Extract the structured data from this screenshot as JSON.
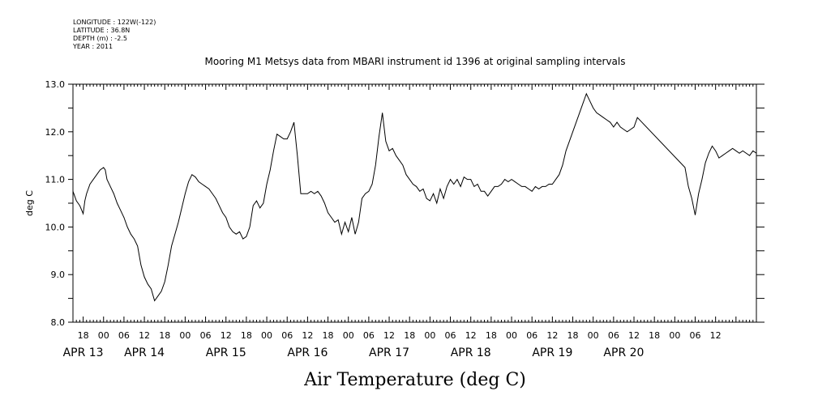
{
  "header": {
    "meta_lines": [
      "LONGITUDE : 122W(-122)",
      "LATITUDE : 36.8N",
      "DEPTH (m) : -2.5",
      "YEAR : 2011"
    ],
    "title": "Mooring M1 Metsys data from MBARI instrument id 1396 at original sampling intervals"
  },
  "chart_data": {
    "type": "line",
    "title": "Mooring M1 Metsys data from MBARI instrument id 1396 at original sampling intervals",
    "xlabel": "Air Temperature (deg C)",
    "ylabel": "deg C",
    "ylim": [
      8.0,
      13.0
    ],
    "y_ticks": [
      "8.0",
      "9.0",
      "10.0",
      "11.0",
      "12.0",
      "13.0"
    ],
    "x_unit": "hours since APR 13 00:00",
    "xlim": [
      15,
      216
    ],
    "hour_ticks": [
      {
        "t": 18,
        "label": "18"
      },
      {
        "t": 24,
        "label": "00"
      },
      {
        "t": 30,
        "label": "06"
      },
      {
        "t": 36,
        "label": "12"
      },
      {
        "t": 42,
        "label": "18"
      },
      {
        "t": 48,
        "label": "00"
      },
      {
        "t": 54,
        "label": "06"
      },
      {
        "t": 60,
        "label": "12"
      },
      {
        "t": 66,
        "label": "18"
      },
      {
        "t": 72,
        "label": "00"
      },
      {
        "t": 78,
        "label": "06"
      },
      {
        "t": 84,
        "label": "12"
      },
      {
        "t": 90,
        "label": "18"
      },
      {
        "t": 96,
        "label": "00"
      },
      {
        "t": 102,
        "label": "06"
      },
      {
        "t": 108,
        "label": "12"
      },
      {
        "t": 114,
        "label": "18"
      },
      {
        "t": 120,
        "label": "00"
      },
      {
        "t": 126,
        "label": "06"
      },
      {
        "t": 132,
        "label": "12"
      },
      {
        "t": 138,
        "label": "18"
      },
      {
        "t": 144,
        "label": "00"
      },
      {
        "t": 150,
        "label": "06"
      },
      {
        "t": 156,
        "label": "12"
      },
      {
        "t": 162,
        "label": "18"
      },
      {
        "t": 168,
        "label": "00"
      },
      {
        "t": 174,
        "label": "06"
      },
      {
        "t": 180,
        "label": "12"
      },
      {
        "t": 186,
        "label": "18"
      },
      {
        "t": 192,
        "label": "00"
      },
      {
        "t": 198,
        "label": "06"
      },
      {
        "t": 204,
        "label": "12"
      }
    ],
    "date_labels": [
      {
        "t": 18,
        "label": "APR 13"
      },
      {
        "t": 36,
        "label": "APR 14"
      },
      {
        "t": 60,
        "label": "APR 15"
      },
      {
        "t": 84,
        "label": "APR 16"
      },
      {
        "t": 108,
        "label": "APR 17"
      },
      {
        "t": 132,
        "label": "APR 18"
      },
      {
        "t": 156,
        "label": "APR 19"
      },
      {
        "t": 177,
        "label": "APR 20"
      }
    ],
    "series": [
      {
        "color": "#000000",
        "points": [
          [
            15.0,
            10.75
          ],
          [
            16.0,
            10.55
          ],
          [
            17.0,
            10.45
          ],
          [
            18.0,
            10.28
          ],
          [
            18.5,
            10.55
          ],
          [
            19.0,
            10.7
          ],
          [
            20.0,
            10.9
          ],
          [
            21.0,
            11.0
          ],
          [
            22.0,
            11.1
          ],
          [
            23.0,
            11.2
          ],
          [
            24.0,
            11.25
          ],
          [
            24.5,
            11.2
          ],
          [
            25.0,
            11.0
          ],
          [
            26.0,
            10.85
          ],
          [
            27.0,
            10.7
          ],
          [
            28.0,
            10.5
          ],
          [
            29.0,
            10.35
          ],
          [
            30.0,
            10.2
          ],
          [
            31.0,
            10.0
          ],
          [
            32.0,
            9.85
          ],
          [
            33.0,
            9.75
          ],
          [
            34.0,
            9.6
          ],
          [
            35.0,
            9.2
          ],
          [
            36.0,
            8.95
          ],
          [
            37.0,
            8.8
          ],
          [
            38.0,
            8.7
          ],
          [
            39.0,
            8.45
          ],
          [
            40.0,
            8.55
          ],
          [
            41.0,
            8.65
          ],
          [
            42.0,
            8.85
          ],
          [
            43.0,
            9.2
          ],
          [
            44.0,
            9.6
          ],
          [
            45.0,
            9.85
          ],
          [
            46.0,
            10.1
          ],
          [
            47.0,
            10.4
          ],
          [
            48.0,
            10.7
          ],
          [
            49.0,
            10.95
          ],
          [
            50.0,
            11.1
          ],
          [
            51.0,
            11.05
          ],
          [
            52.0,
            10.95
          ],
          [
            53.0,
            10.9
          ],
          [
            54.0,
            10.85
          ],
          [
            55.0,
            10.8
          ],
          [
            56.0,
            10.7
          ],
          [
            57.0,
            10.6
          ],
          [
            58.0,
            10.45
          ],
          [
            59.0,
            10.3
          ],
          [
            60.0,
            10.2
          ],
          [
            61.0,
            10.0
          ],
          [
            62.0,
            9.9
          ],
          [
            63.0,
            9.85
          ],
          [
            64.0,
            9.9
          ],
          [
            65.0,
            9.75
          ],
          [
            66.0,
            9.8
          ],
          [
            67.0,
            10.0
          ],
          [
            68.0,
            10.45
          ],
          [
            69.0,
            10.55
          ],
          [
            70.0,
            10.4
          ],
          [
            71.0,
            10.5
          ],
          [
            72.0,
            10.9
          ],
          [
            73.0,
            11.2
          ],
          [
            74.0,
            11.6
          ],
          [
            75.0,
            11.95
          ],
          [
            76.0,
            11.9
          ],
          [
            77.0,
            11.85
          ],
          [
            78.0,
            11.85
          ],
          [
            79.0,
            12.0
          ],
          [
            80.0,
            12.2
          ],
          [
            81.0,
            11.5
          ],
          [
            82.0,
            10.7
          ],
          [
            83.0,
            10.7
          ],
          [
            84.0,
            10.7
          ],
          [
            85.0,
            10.75
          ],
          [
            86.0,
            10.7
          ],
          [
            87.0,
            10.75
          ],
          [
            88.0,
            10.65
          ],
          [
            89.0,
            10.5
          ],
          [
            90.0,
            10.3
          ],
          [
            91.0,
            10.2
          ],
          [
            92.0,
            10.1
          ],
          [
            93.0,
            10.15
          ],
          [
            94.0,
            9.85
          ],
          [
            95.0,
            10.1
          ],
          [
            96.0,
            9.9
          ],
          [
            97.0,
            10.2
          ],
          [
            98.0,
            9.85
          ],
          [
            99.0,
            10.1
          ],
          [
            100.0,
            10.6
          ],
          [
            101.0,
            10.7
          ],
          [
            102.0,
            10.75
          ],
          [
            103.0,
            10.9
          ],
          [
            104.0,
            11.3
          ],
          [
            105.0,
            11.9
          ],
          [
            106.0,
            12.4
          ],
          [
            107.0,
            11.8
          ],
          [
            108.0,
            11.6
          ],
          [
            109.0,
            11.65
          ],
          [
            110.0,
            11.5
          ],
          [
            111.0,
            11.4
          ],
          [
            112.0,
            11.3
          ],
          [
            113.0,
            11.1
          ],
          [
            114.0,
            11.0
          ],
          [
            115.0,
            10.9
          ],
          [
            116.0,
            10.85
          ],
          [
            117.0,
            10.75
          ],
          [
            118.0,
            10.8
          ],
          [
            119.0,
            10.6
          ],
          [
            120.0,
            10.55
          ],
          [
            121.0,
            10.7
          ],
          [
            122.0,
            10.5
          ],
          [
            123.0,
            10.8
          ],
          [
            124.0,
            10.6
          ],
          [
            125.0,
            10.85
          ],
          [
            126.0,
            11.0
          ],
          [
            127.0,
            10.9
          ],
          [
            128.0,
            11.0
          ],
          [
            129.0,
            10.85
          ],
          [
            130.0,
            11.05
          ],
          [
            131.0,
            11.0
          ],
          [
            132.0,
            11.0
          ],
          [
            133.0,
            10.85
          ],
          [
            134.0,
            10.9
          ],
          [
            135.0,
            10.75
          ],
          [
            136.0,
            10.75
          ],
          [
            137.0,
            10.65
          ],
          [
            138.0,
            10.75
          ],
          [
            139.0,
            10.85
          ],
          [
            140.0,
            10.85
          ],
          [
            141.0,
            10.9
          ],
          [
            142.0,
            11.0
          ],
          [
            143.0,
            10.95
          ],
          [
            144.0,
            11.0
          ],
          [
            145.0,
            10.95
          ],
          [
            146.0,
            10.9
          ],
          [
            147.0,
            10.85
          ],
          [
            148.0,
            10.85
          ],
          [
            149.0,
            10.8
          ],
          [
            150.0,
            10.75
          ],
          [
            151.0,
            10.85
          ],
          [
            152.0,
            10.8
          ],
          [
            153.0,
            10.85
          ],
          [
            154.0,
            10.85
          ],
          [
            155.0,
            10.9
          ],
          [
            156.0,
            10.9
          ],
          [
            157.0,
            11.0
          ],
          [
            158.0,
            11.1
          ],
          [
            159.0,
            11.3
          ],
          [
            160.0,
            11.6
          ],
          [
            161.0,
            11.8
          ],
          [
            162.0,
            12.0
          ],
          [
            163.0,
            12.2
          ],
          [
            164.0,
            12.4
          ],
          [
            165.0,
            12.6
          ],
          [
            166.0,
            12.8
          ],
          [
            167.0,
            12.65
          ],
          [
            168.0,
            12.5
          ],
          [
            169.0,
            12.4
          ],
          [
            170.0,
            12.35
          ],
          [
            171.0,
            12.3
          ],
          [
            172.0,
            12.25
          ],
          [
            173.0,
            12.2
          ],
          [
            174.0,
            12.1
          ],
          [
            175.0,
            12.2
          ],
          [
            176.0,
            12.1
          ],
          [
            177.0,
            12.05
          ],
          [
            178.0,
            12.0
          ],
          [
            179.0,
            12.05
          ],
          [
            180.0,
            12.1
          ],
          [
            181.0,
            12.3
          ],
          [
            195.0,
            11.25
          ],
          [
            196.0,
            10.85
          ],
          [
            197.0,
            10.6
          ],
          [
            198.0,
            10.25
          ],
          [
            199.0,
            10.7
          ],
          [
            200.0,
            11.0
          ],
          [
            201.0,
            11.35
          ],
          [
            202.0,
            11.55
          ],
          [
            203.0,
            11.7
          ],
          [
            204.0,
            11.6
          ],
          [
            205.0,
            11.45
          ],
          [
            206.0,
            11.5
          ],
          [
            207.0,
            11.55
          ],
          [
            208.0,
            11.6
          ],
          [
            209.0,
            11.65
          ],
          [
            210.0,
            11.6
          ],
          [
            211.0,
            11.55
          ],
          [
            212.0,
            11.6
          ],
          [
            213.0,
            11.55
          ],
          [
            214.0,
            11.5
          ],
          [
            215.0,
            11.6
          ],
          [
            216.0,
            11.55
          ]
        ]
      }
    ],
    "grid": false
  }
}
